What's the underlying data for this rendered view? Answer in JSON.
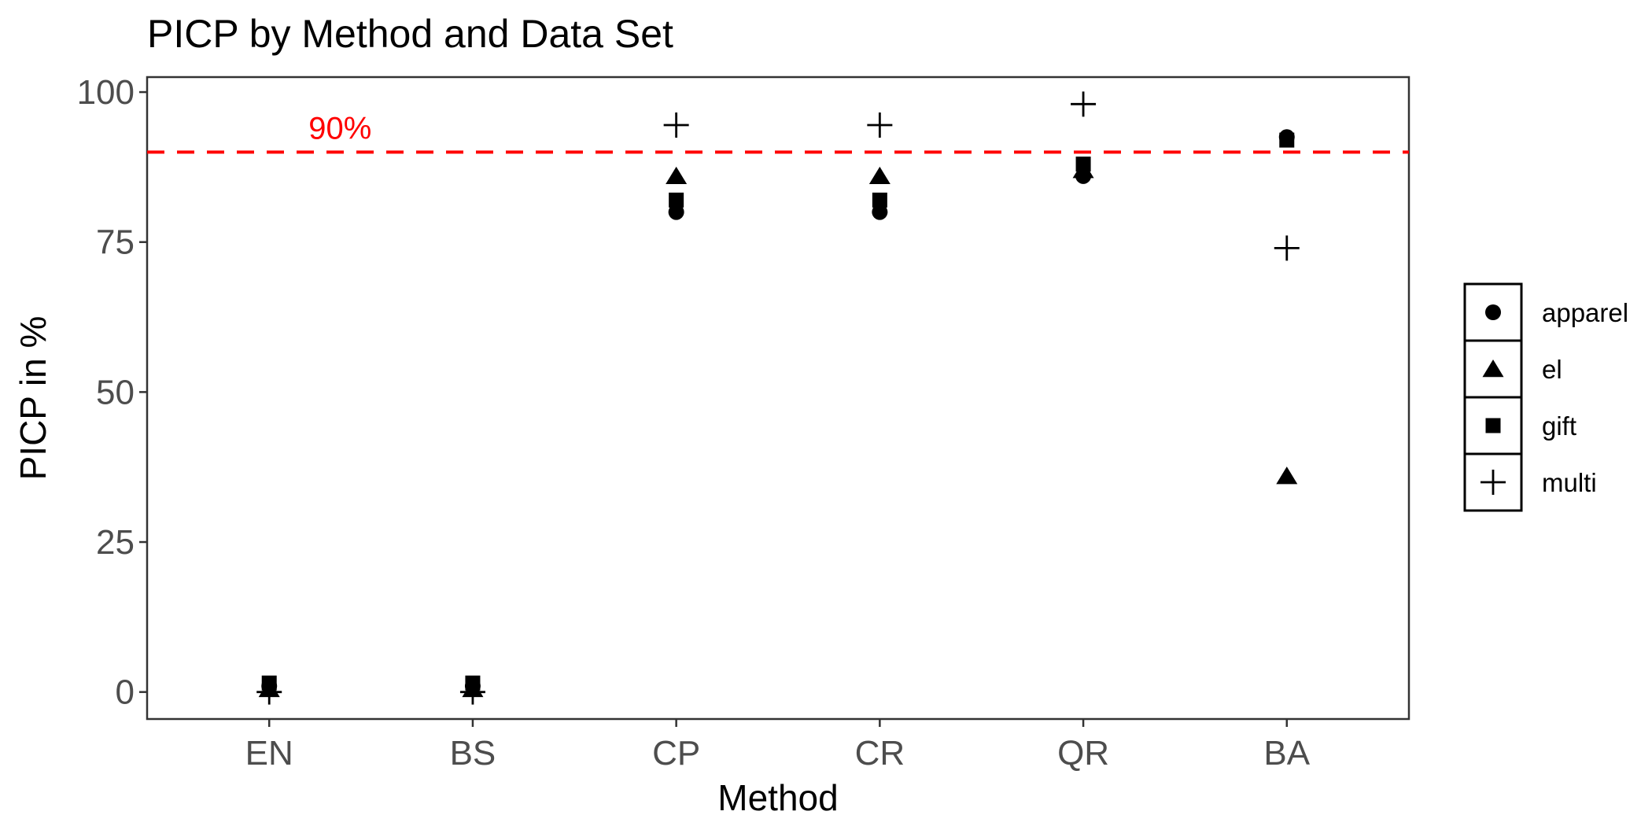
{
  "chart_data": {
    "type": "scatter",
    "title": "PICP by Method and Data Set",
    "xlabel": "Method",
    "ylabel": "PICP in %",
    "categories": [
      "EN",
      "BS",
      "CP",
      "CR",
      "QR",
      "BA"
    ],
    "ylim": [
      -4.5,
      102.5
    ],
    "yticks": [
      0,
      25,
      50,
      75,
      100
    ],
    "grid": false,
    "legend_position": "right",
    "reference_line": {
      "value": 90,
      "label": "90%",
      "color": "#ff0000",
      "style": "dashed"
    },
    "series": [
      {
        "name": "apparel",
        "shape": "circle",
        "values": [
          1.0,
          1.0,
          80.0,
          80.0,
          86.0,
          92.5
        ]
      },
      {
        "name": "el",
        "shape": "triangle",
        "values": [
          0.5,
          0.5,
          86.0,
          86.0,
          87.0,
          36.0
        ]
      },
      {
        "name": "gift",
        "shape": "square",
        "values": [
          1.5,
          1.5,
          82.0,
          82.0,
          88.0,
          92.0
        ]
      },
      {
        "name": "multi",
        "shape": "plus",
        "values": [
          0.0,
          0.0,
          94.5,
          94.5,
          98.0,
          74.0
        ]
      }
    ]
  }
}
